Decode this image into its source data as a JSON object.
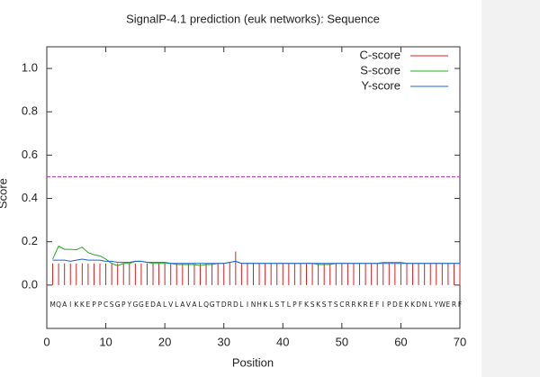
{
  "chart_data": {
    "type": "line",
    "title": "SignalP-4.1 prediction (euk networks): Sequence",
    "xlabel": "Position",
    "ylabel": "Score",
    "x": [
      1,
      2,
      3,
      4,
      5,
      6,
      7,
      8,
      9,
      10,
      11,
      12,
      13,
      14,
      15,
      16,
      17,
      18,
      19,
      20,
      21,
      22,
      23,
      24,
      25,
      26,
      27,
      28,
      29,
      30,
      31,
      32,
      33,
      34,
      35,
      36,
      37,
      38,
      39,
      40,
      41,
      42,
      43,
      44,
      45,
      46,
      47,
      48,
      49,
      50,
      51,
      52,
      53,
      54,
      55,
      56,
      57,
      58,
      59,
      60,
      61,
      62,
      63,
      64,
      65,
      66,
      67,
      68,
      69,
      70
    ],
    "sequence": [
      "M",
      "Q",
      "A",
      "I",
      "K",
      "K",
      "E",
      "P",
      "P",
      "C",
      "S",
      "G",
      "P",
      "Y",
      "G",
      "G",
      "E",
      "D",
      "A",
      "L",
      "V",
      "L",
      "A",
      "V",
      "A",
      "L",
      "Q",
      "G",
      "T",
      "D",
      "R",
      "D",
      "L",
      "I",
      "N",
      "H",
      "K",
      "L",
      "S",
      "T",
      "L",
      "P",
      "F",
      "K",
      "S",
      "K",
      "S",
      "T",
      "S",
      "C",
      "R",
      "R",
      "K",
      "R",
      "E",
      "F",
      "I",
      "P",
      "D",
      "E",
      "K",
      "K",
      "D",
      "N",
      "L",
      "Y",
      "W",
      "E",
      "R",
      "F"
    ],
    "series": [
      {
        "name": "C-score",
        "color": "#d62020",
        "style": "impulses",
        "values": [
          0.1,
          0.1,
          0.1,
          0.1,
          0.1,
          0.1,
          0.1,
          0.1,
          0.1,
          0.1,
          0.1,
          0.1,
          0.1,
          0.1,
          0.1,
          0.1,
          0.1,
          0.1,
          0.1,
          0.1,
          0.1,
          0.1,
          0.1,
          0.1,
          0.1,
          0.1,
          0.1,
          0.1,
          0.1,
          0.1,
          0.105,
          0.155,
          0.1,
          0.1,
          0.1,
          0.1,
          0.1,
          0.1,
          0.1,
          0.1,
          0.1,
          0.1,
          0.1,
          0.1,
          0.1,
          0.1,
          0.1,
          0.1,
          0.1,
          0.1,
          0.1,
          0.1,
          0.1,
          0.1,
          0.1,
          0.1,
          0.1,
          0.1,
          0.1,
          0.1,
          0.1,
          0.1,
          0.1,
          0.1,
          0.1,
          0.1,
          0.1,
          0.1,
          0.1,
          0.1
        ]
      },
      {
        "name": "S-score",
        "color": "#20b020",
        "style": "line",
        "values": [
          0.12,
          0.18,
          0.165,
          0.165,
          0.163,
          0.175,
          0.15,
          0.14,
          0.135,
          0.12,
          0.1,
          0.09,
          0.1,
          0.1,
          0.11,
          0.11,
          0.105,
          0.1,
          0.1,
          0.1,
          0.1,
          0.095,
          0.095,
          0.095,
          0.095,
          0.09,
          0.095,
          0.095,
          0.1,
          0.1,
          0.105,
          0.11,
          0.1,
          0.1,
          0.1,
          0.1,
          0.1,
          0.1,
          0.1,
          0.1,
          0.1,
          0.1,
          0.1,
          0.1,
          0.1,
          0.095,
          0.095,
          0.095,
          0.1,
          0.1,
          0.1,
          0.1,
          0.1,
          0.1,
          0.1,
          0.1,
          0.105,
          0.105,
          0.105,
          0.105,
          0.1,
          0.1,
          0.1,
          0.1,
          0.1,
          0.1,
          0.1,
          0.1,
          0.1,
          0.1
        ]
      },
      {
        "name": "Y-score",
        "color": "#2060d0",
        "style": "line",
        "values": [
          0.115,
          0.115,
          0.115,
          0.11,
          0.115,
          0.12,
          0.115,
          0.115,
          0.115,
          0.11,
          0.11,
          0.105,
          0.105,
          0.105,
          0.11,
          0.11,
          0.105,
          0.105,
          0.105,
          0.105,
          0.1,
          0.1,
          0.1,
          0.1,
          0.1,
          0.1,
          0.1,
          0.1,
          0.1,
          0.1,
          0.105,
          0.11,
          0.1,
          0.1,
          0.1,
          0.1,
          0.1,
          0.1,
          0.1,
          0.1,
          0.1,
          0.1,
          0.1,
          0.1,
          0.1,
          0.1,
          0.1,
          0.1,
          0.1,
          0.1,
          0.1,
          0.1,
          0.1,
          0.1,
          0.1,
          0.1,
          0.1,
          0.1,
          0.1,
          0.1,
          0.1,
          0.1,
          0.1,
          0.1,
          0.1,
          0.1,
          0.1,
          0.1,
          0.1,
          0.1
        ]
      }
    ],
    "threshold": {
      "value": 0.5,
      "color": "#c040c0"
    },
    "xlim": [
      0,
      70
    ],
    "xticks": [
      0,
      10,
      20,
      30,
      40,
      50,
      60,
      70
    ],
    "ylim": [
      -0.2,
      1.1
    ],
    "yticks": [
      {
        "value": 0,
        "label": "0.0"
      },
      0.2,
      0.4,
      0.6,
      0.8,
      {
        "value": 1,
        "label": "1.0"
      }
    ],
    "legend": "top-right"
  }
}
